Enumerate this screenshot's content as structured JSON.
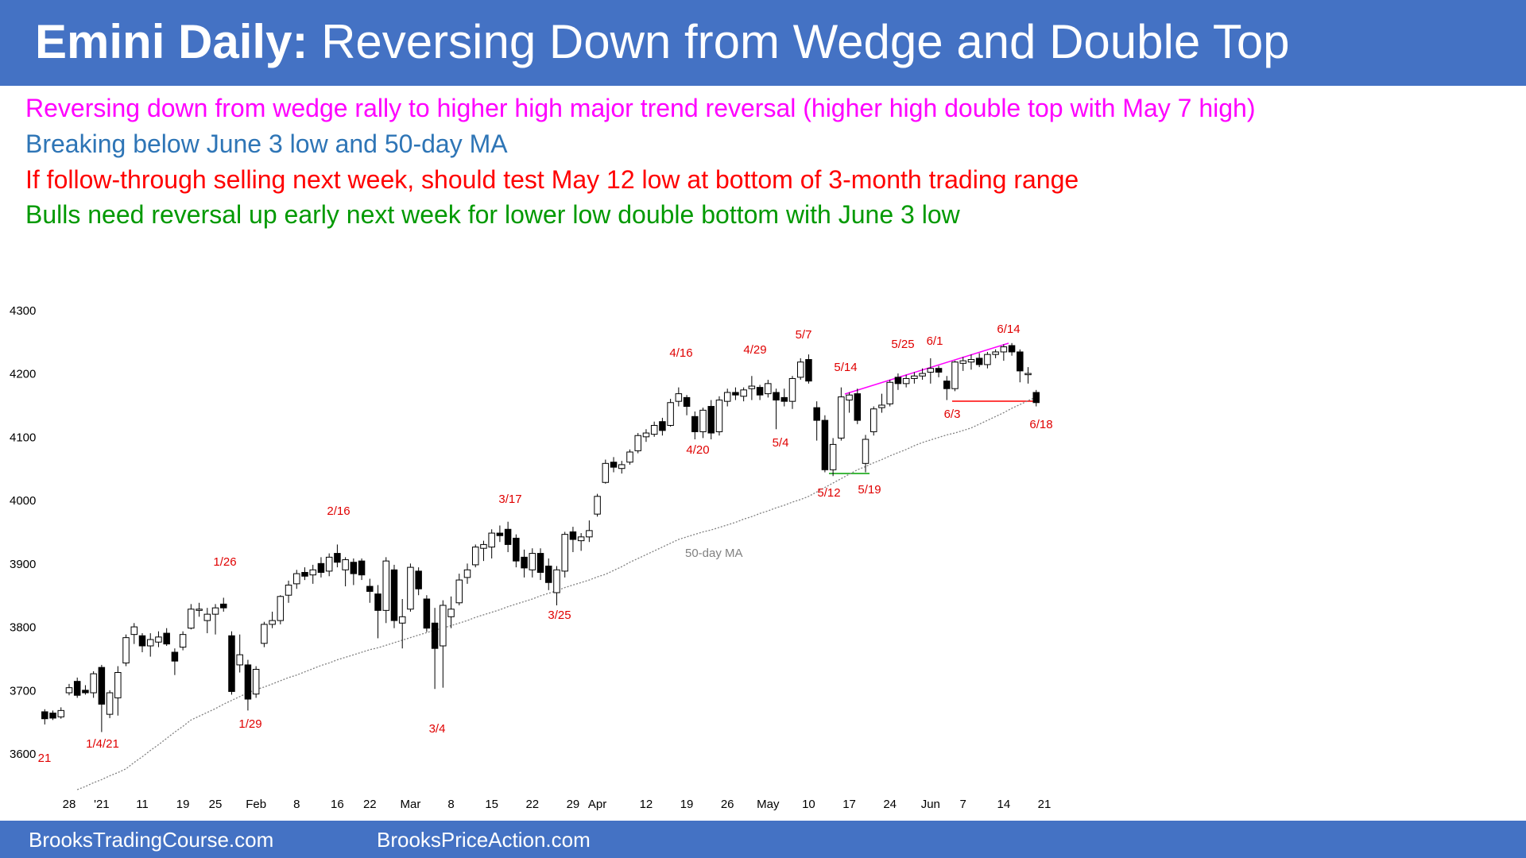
{
  "header": {
    "title_bold": "Emini Daily:",
    "title": "Reversing Down from Wedge and Double Top"
  },
  "notes": [
    "Reversing down from wedge rally to higher high major trend reversal (higher high double top with May 7 high)",
    "Breaking below June 3 low and 50-day MA",
    "If follow-through selling next week, should test May 12 low at bottom of 3-month trading range",
    "Bulls need reversal up early next week for lower low double bottom with June 3 low"
  ],
  "chart_data": {
    "type": "candlestick",
    "categories": [
      null,
      null,
      null,
      "28",
      null,
      null,
      null,
      "'21",
      null,
      null,
      null,
      null,
      "11",
      null,
      null,
      null,
      null,
      "19",
      null,
      null,
      null,
      "25",
      null,
      null,
      null,
      null,
      "Feb",
      null,
      null,
      null,
      null,
      "8",
      null,
      null,
      null,
      null,
      "16",
      null,
      null,
      null,
      "22",
      null,
      null,
      null,
      null,
      "Mar",
      null,
      null,
      null,
      null,
      "8",
      null,
      null,
      null,
      null,
      "15",
      null,
      null,
      null,
      null,
      "22",
      null,
      null,
      null,
      null,
      "29",
      null,
      null,
      "Apr",
      null,
      null,
      null,
      null,
      null,
      "12",
      null,
      null,
      null,
      null,
      "19",
      null,
      null,
      null,
      null,
      "26",
      null,
      null,
      null,
      null,
      "May",
      null,
      null,
      null,
      null,
      "10",
      null,
      null,
      null,
      null,
      "17",
      null,
      null,
      null,
      null,
      "24",
      null,
      null,
      null,
      null,
      "Jun",
      null,
      null,
      null,
      "7",
      null,
      null,
      null,
      null,
      "14",
      null,
      null,
      null,
      null,
      "21"
    ],
    "open": [
      3668,
      3666,
      3660,
      3698,
      3716,
      3702,
      3698,
      3738,
      3664,
      3690,
      3745,
      3790,
      3788,
      3772,
      3778,
      3792,
      3762,
      3770,
      3800,
      3828,
      3812,
      3822,
      3838,
      3788,
      3742,
      3742,
      3696,
      3776,
      3806,
      3812,
      3852,
      3870,
      3888,
      3884,
      3902,
      3890,
      3918,
      3892,
      3904,
      3906,
      3866,
      3854,
      3828,
      3892,
      3808,
      3830,
      3890,
      3846,
      3808,
      3772,
      3818,
      3840,
      3880,
      3900,
      3926,
      3928,
      3950,
      3956,
      3942,
      3912,
      3892,
      3918,
      3898,
      3856,
      3890,
      3952,
      3938,
      3944,
      3980,
      4030,
      4062,
      4052,
      4062,
      4080,
      4102,
      4106,
      4126,
      4120,
      4158,
      4164,
      4134,
      4110,
      4150,
      4110,
      4158,
      4172,
      4166,
      4178,
      4180,
      4170,
      4172,
      4164,
      4158,
      4196,
      4224,
      4148,
      4128,
      4050,
      4100,
      4160,
      4170,
      4060,
      4110,
      4148,
      4154,
      4196,
      4186,
      4194,
      4198,
      4204,
      4210,
      4190,
      4178,
      4218,
      4220,
      4226,
      4216,
      4232,
      4236,
      4246,
      4236,
      4200,
      4172,
      null
    ],
    "high": [
      3672,
      3670,
      3675,
      3712,
      3722,
      3710,
      3732,
      3742,
      3702,
      3740,
      3790,
      3808,
      3792,
      3792,
      3795,
      3800,
      3768,
      3795,
      3838,
      3840,
      3832,
      3838,
      3848,
      3795,
      3790,
      3750,
      3740,
      3810,
      3826,
      3852,
      3875,
      3892,
      3896,
      3900,
      3912,
      3918,
      3932,
      3912,
      3910,
      3910,
      3878,
      3868,
      3912,
      3900,
      3846,
      3902,
      3896,
      3852,
      3832,
      3844,
      3850,
      3886,
      3902,
      3932,
      3938,
      3956,
      3962,
      3968,
      3948,
      3924,
      3926,
      3926,
      3910,
      3898,
      3952,
      3960,
      3950,
      3970,
      4012,
      4066,
      4070,
      4064,
      4082,
      4108,
      4114,
      4126,
      4132,
      4162,
      4180,
      4168,
      4142,
      4148,
      4160,
      4166,
      4178,
      4180,
      4180,
      4198,
      4184,
      4192,
      4178,
      4178,
      4198,
      4226,
      4232,
      4158,
      4136,
      4100,
      4180,
      4172,
      4178,
      4105,
      4150,
      4170,
      4192,
      4202,
      4200,
      4204,
      4210,
      4226,
      4214,
      4198,
      4222,
      4228,
      4232,
      4234,
      4236,
      4240,
      4248,
      4250,
      4240,
      4212,
      4176,
      null
    ],
    "low": [
      3648,
      3655,
      3657,
      3694,
      3690,
      3695,
      3690,
      3636,
      3658,
      3662,
      3740,
      3775,
      3762,
      3755,
      3770,
      3772,
      3726,
      3765,
      3798,
      3818,
      3792,
      3790,
      3826,
      3695,
      3730,
      3670,
      3690,
      3770,
      3800,
      3806,
      3840,
      3862,
      3876,
      3870,
      3880,
      3882,
      3896,
      3866,
      3868,
      3876,
      3840,
      3784,
      3808,
      3800,
      3768,
      3826,
      3852,
      3794,
      3704,
      3706,
      3800,
      3836,
      3870,
      3896,
      3906,
      3910,
      3936,
      3920,
      3896,
      3880,
      3880,
      3876,
      3860,
      3836,
      3880,
      3920,
      3922,
      3936,
      3976,
      4028,
      4046,
      4044,
      4058,
      4076,
      4094,
      4102,
      4104,
      4118,
      4150,
      4136,
      4098,
      4100,
      4098,
      4104,
      4150,
      4160,
      4158,
      4160,
      4160,
      4164,
      4114,
      4150,
      4146,
      4192,
      4186,
      4096,
      4046,
      4040,
      4096,
      4140,
      4122,
      4046,
      4104,
      4140,
      4150,
      4176,
      4180,
      4186,
      4192,
      4186,
      4196,
      4160,
      4174,
      4206,
      4208,
      4212,
      4210,
      4226,
      4222,
      4230,
      4188,
      4186,
      4150,
      null
    ],
    "close": [
      3657,
      3658,
      3670,
      3706,
      3694,
      3698,
      3728,
      3680,
      3698,
      3730,
      3785,
      3802,
      3772,
      3782,
      3786,
      3775,
      3748,
      3790,
      3830,
      3830,
      3822,
      3832,
      3832,
      3700,
      3758,
      3688,
      3735,
      3806,
      3812,
      3850,
      3868,
      3886,
      3882,
      3892,
      3888,
      3912,
      3904,
      3908,
      3886,
      3884,
      3858,
      3828,
      3906,
      3812,
      3818,
      3896,
      3862,
      3800,
      3768,
      3836,
      3830,
      3876,
      3892,
      3928,
      3932,
      3950,
      3946,
      3932,
      3906,
      3895,
      3918,
      3888,
      3872,
      3892,
      3948,
      3940,
      3944,
      3954,
      4008,
      4060,
      4054,
      4058,
      4078,
      4104,
      4108,
      4120,
      4112,
      4156,
      4170,
      4150,
      4110,
      4144,
      4108,
      4160,
      4172,
      4168,
      4176,
      4182,
      4168,
      4186,
      4160,
      4158,
      4194,
      4220,
      4190,
      4128,
      4050,
      4090,
      4165,
      4168,
      4128,
      4098,
      4146,
      4152,
      4188,
      4186,
      4194,
      4198,
      4202,
      4210,
      4204,
      4178,
      4220,
      4222,
      4224,
      4216,
      4232,
      4236,
      4244,
      4236,
      4206,
      4202,
      4156,
      null
    ],
    "up_color": "#ffffff",
    "down_color": "#000000",
    "ma": {
      "name": "50-day MA",
      "color": "#808080",
      "values": [
        null,
        null,
        null,
        null,
        3545,
        3550,
        3556,
        3561,
        3567,
        3572,
        3578,
        3588,
        3597,
        3607,
        3616,
        3626,
        3636,
        3645,
        3655,
        3661,
        3667,
        3673,
        3680,
        3686,
        3692,
        3698,
        3703,
        3707,
        3712,
        3717,
        3722,
        3726,
        3731,
        3736,
        3741,
        3745,
        3750,
        3754,
        3758,
        3762,
        3766,
        3769,
        3773,
        3777,
        3781,
        3785,
        3789,
        3793,
        3797,
        3800,
        3804,
        3808,
        3812,
        3817,
        3821,
        3825,
        3829,
        3834,
        3838,
        3842,
        3846,
        3851,
        3855,
        3859,
        3864,
        3868,
        3872,
        3876,
        3881,
        3885,
        3891,
        3897,
        3904,
        3910,
        3916,
        3922,
        3928,
        3934,
        3940,
        3944,
        3948,
        3952,
        3955,
        3959,
        3963,
        3967,
        3972,
        3976,
        3981,
        3985,
        3990,
        3994,
        3999,
        4003,
        4008,
        4015,
        4022,
        4029,
        4036,
        4043,
        4050,
        4055,
        4061,
        4066,
        4072,
        4077,
        4082,
        4088,
        4093,
        4097,
        4101,
        4105,
        4108,
        4112,
        4116,
        4122,
        4128,
        4134,
        4140,
        4147,
        4153,
        4159,
        4165,
        null
      ]
    },
    "ylim": [
      3530,
      4330
    ],
    "yticks": [
      3600,
      3700,
      3800,
      3900,
      4000,
      4100,
      4200,
      4300
    ],
    "grid": false,
    "annotations": [
      "21",
      "1/4/21",
      "1/26",
      "1/29",
      "2/16",
      "3/4",
      "3/17",
      "3/25",
      "4/16",
      "4/20",
      "4/29",
      "5/4",
      "5/7",
      "5/12",
      "5/14",
      "5/19",
      "5/25",
      "6/1",
      "6/3",
      "6/14",
      "6/18"
    ]
  },
  "footer": {
    "left": "BrooksTradingCourse.com",
    "right": "BrooksPriceAction.com"
  }
}
